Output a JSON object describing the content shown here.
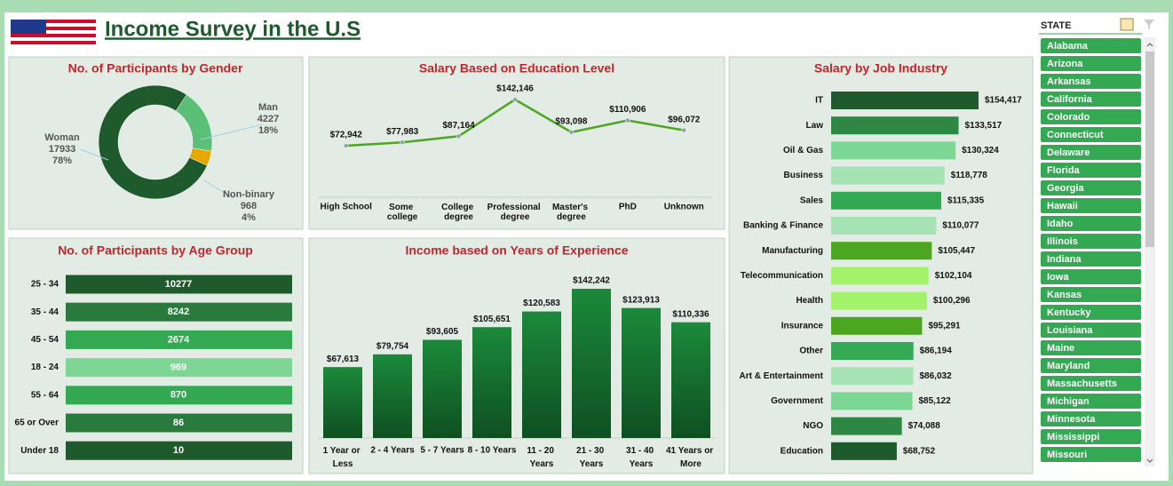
{
  "title": "Income Survey in the U.S",
  "chart_data": [
    {
      "type": "pie",
      "title": "No. of Participants by Gender",
      "categories": [
        "Woman",
        "Man",
        "Non-binary"
      ],
      "values": [
        17933,
        4227,
        968
      ],
      "percent_labels": [
        "78%",
        "18%",
        "4%"
      ],
      "colors": [
        "#1e5a2c",
        "#5cbf77",
        "#e6a800"
      ]
    },
    {
      "type": "line",
      "title": "Salary Based on Education Level",
      "categories": [
        "High School",
        "Some college",
        "College degree",
        "Professional degree",
        "Master's degree",
        "PhD",
        "Unknown"
      ],
      "values": [
        72942,
        77983,
        87164,
        142146,
        93098,
        110906,
        96072
      ],
      "value_labels": [
        "$72,942",
        "$77,983",
        "$87,164",
        "$142,146",
        "$93,098",
        "$110,906",
        "$96,072"
      ],
      "color": "#4ca620"
    },
    {
      "type": "table",
      "title": "No. of Participants by Age Group",
      "categories": [
        "25 - 34",
        "35 - 44",
        "45 - 54",
        "18 - 24",
        "55 - 64",
        "65 or Over",
        "Under 18"
      ],
      "values": [
        10277,
        8242,
        2674,
        969,
        870,
        86,
        10
      ],
      "colors": [
        "#1e5a2c",
        "#2a7a3e",
        "#34a853",
        "#7dd694",
        "#34a853",
        "#2a7a3e",
        "#1e5a2c"
      ]
    },
    {
      "type": "bar",
      "title": "Income based on Years of Experience",
      "categories": [
        "1 Year or Less",
        "2 - 4 Years",
        "5 - 7 Years",
        "8 - 10 Years",
        "11 - 20 Years",
        "21 - 30 Years",
        "31 - 40 Years",
        "41 Years or More"
      ],
      "values": [
        67613,
        79754,
        93605,
        105651,
        120583,
        142242,
        123913,
        110336
      ],
      "value_labels": [
        "$67,613",
        "$79,754",
        "$93,605",
        "$105,651",
        "$120,583",
        "$142,242",
        "$123,913",
        "$110,336"
      ],
      "color": "#15662c"
    },
    {
      "type": "hbar",
      "title": "Salary by Job Industry",
      "categories": [
        "IT",
        "Law",
        "Oil & Gas",
        "Business",
        "Sales",
        "Banking & Finance",
        "Manufacturing",
        "Telecommunication",
        "Health",
        "Insurance",
        "Other",
        "Art & Entertainment",
        "Government",
        "NGO",
        "Education"
      ],
      "values": [
        154417,
        133517,
        130324,
        118778,
        115335,
        110077,
        105447,
        102104,
        100296,
        95291,
        86194,
        86032,
        85122,
        74088,
        68752
      ],
      "value_labels": [
        "$154,417",
        "$133,517",
        "$130,324",
        "$118,778",
        "$115,335",
        "$110,077",
        "$105,447",
        "$102,104",
        "$100,296",
        "$95,291",
        "$86,194",
        "$86,032",
        "$85,122",
        "$74,088",
        "$68,752"
      ],
      "colors": [
        "#1e5a2c",
        "#2e8745",
        "#7dd694",
        "#a6e3b4",
        "#34a853",
        "#a6e3b4",
        "#4ca620",
        "#a3f36a",
        "#a3f36a",
        "#4ca620",
        "#34a853",
        "#a6e3b4",
        "#7dd694",
        "#2e8745",
        "#1e5a2c"
      ]
    }
  ],
  "slicer": {
    "title": "STATE",
    "items": [
      "Alabama",
      "Arizona",
      "Arkansas",
      "California",
      "Colorado",
      "Connecticut",
      "Delaware",
      "Florida",
      "Georgia",
      "Hawaii",
      "Idaho",
      "Illinois",
      "Indiana",
      "Iowa",
      "Kansas",
      "Kentucky",
      "Louisiana",
      "Maine",
      "Maryland",
      "Massachusetts",
      "Michigan",
      "Minnesota",
      "Mississippi",
      "Missouri"
    ]
  }
}
